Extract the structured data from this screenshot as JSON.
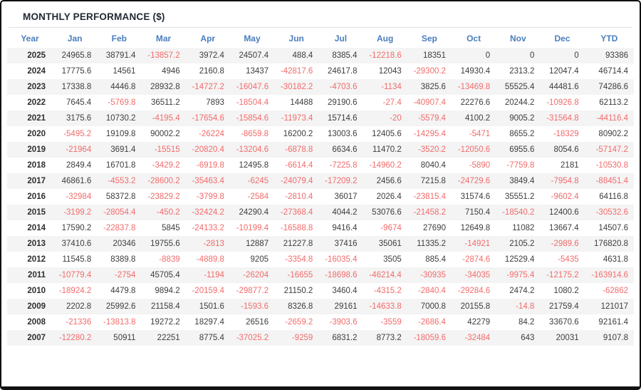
{
  "title": "MONTHLY PERFORMANCE ($)",
  "colors": {
    "header_blue": "#4a7ebd",
    "negative_red": "#f26b6b",
    "value_dark": "#3d3d3d",
    "stripe_gray": "#f4f4f4",
    "title_dark": "#222a35",
    "frame_border": "#111111"
  },
  "chart_data": {
    "type": "table",
    "title": "MONTHLY PERFORMANCE ($)",
    "columns": [
      "Year",
      "Jan",
      "Feb",
      "Mar",
      "Apr",
      "May",
      "Jun",
      "Jul",
      "Aug",
      "Sep",
      "Oct",
      "Nov",
      "Dec",
      "YTD"
    ],
    "rows": [
      [
        "2025",
        "24965.8",
        "38791.4",
        "-13857.2",
        "3972.4",
        "24507.4",
        "488.4",
        "8385.4",
        "-12218.6",
        "18351",
        "0",
        "0",
        "0",
        "93386"
      ],
      [
        "2024",
        "17775.6",
        "14561",
        "4946",
        "2160.8",
        "13437",
        "-42817.6",
        "24617.8",
        "12043",
        "-29300.2",
        "14930.4",
        "2313.2",
        "12047.4",
        "46714.4"
      ],
      [
        "2023",
        "17338.8",
        "4446.8",
        "28932.8",
        "-14727.2",
        "-16047.6",
        "-30182.2",
        "-4703.6",
        "-1134",
        "3825.6",
        "-13469.8",
        "55525.4",
        "44481.6",
        "74286.6"
      ],
      [
        "2022",
        "7645.4",
        "-5769.8",
        "36511.2",
        "7893",
        "-18504.4",
        "14488",
        "29190.6",
        "-27.4",
        "-40907.4",
        "22276.6",
        "20244.2",
        "-10926.8",
        "62113.2"
      ],
      [
        "2021",
        "3175.6",
        "10730.2",
        "-4195.4",
        "-17654.6",
        "-15854.6",
        "-11973.4",
        "15714.6",
        "-20",
        "-5579.4",
        "4100.2",
        "9005.2",
        "-31564.8",
        "-44116.4"
      ],
      [
        "2020",
        "-5495.2",
        "19109.8",
        "90002.2",
        "-26224",
        "-8659.8",
        "16200.2",
        "13003.6",
        "12405.6",
        "-14295.4",
        "-5471",
        "8655.2",
        "-18329",
        "80902.2"
      ],
      [
        "2019",
        "-21964",
        "3691.4",
        "-15515",
        "-20820.4",
        "-13204.6",
        "-6878.8",
        "6634.6",
        "11470.2",
        "-3520.2",
        "-12050.6",
        "6955.6",
        "8054.6",
        "-57147.2"
      ],
      [
        "2018",
        "2849.4",
        "16701.8",
        "-3429.2",
        "-6919.8",
        "12495.8",
        "-6614.4",
        "-7225.8",
        "-14960.2",
        "8040.4",
        "-5890",
        "-7759.8",
        "2181",
        "-10530.8"
      ],
      [
        "2017",
        "46861.6",
        "-4553.2",
        "-28600.2",
        "-35463.4",
        "-6245",
        "-24079.4",
        "-17209.2",
        "2456.6",
        "7215.8",
        "-24729.6",
        "3849.4",
        "-7954.8",
        "-88451.4"
      ],
      [
        "2016",
        "-32984",
        "58372.8",
        "-23829.2",
        "-3799.8",
        "-2584",
        "-2810.4",
        "36017",
        "2026.4",
        "-23815.4",
        "31574.6",
        "35551.2",
        "-9602.4",
        "64116.8"
      ],
      [
        "2015",
        "-3199.2",
        "-28054.4",
        "-450.2",
        "-32424.2",
        "24290.4",
        "-27368.4",
        "4044.2",
        "53076.6",
        "-21458.2",
        "7150.4",
        "-18540.2",
        "12400.6",
        "-30532.6"
      ],
      [
        "2014",
        "17590.2",
        "-22837.8",
        "5845",
        "-24133.2",
        "-10199.4",
        "-16588.8",
        "9416.4",
        "-9674",
        "27690",
        "12649.8",
        "11082",
        "13667.4",
        "14507.6"
      ],
      [
        "2013",
        "37410.6",
        "20346",
        "19755.6",
        "-2813",
        "12887",
        "21227.8",
        "37416",
        "35061",
        "11335.2",
        "-14921",
        "2105.2",
        "-2989.6",
        "176820.8"
      ],
      [
        "2012",
        "11545.8",
        "8389.8",
        "-8839",
        "-4889.8",
        "9205",
        "-3354.8",
        "-16035.4",
        "3505",
        "885.4",
        "-2874.6",
        "12529.4",
        "-5435",
        "4631.8"
      ],
      [
        "2011",
        "-10779.4",
        "-2754",
        "45705.4",
        "-1194",
        "-26204",
        "-16655",
        "-18698.6",
        "-46214.4",
        "-30935",
        "-34035",
        "-9975.4",
        "-12175.2",
        "-163914.6"
      ],
      [
        "2010",
        "-18924.2",
        "4479.8",
        "9894.2",
        "-20159.4",
        "-29877.2",
        "21150.2",
        "3460.4",
        "-4315.2",
        "-2840.4",
        "-29284.6",
        "2474.2",
        "1080.2",
        "-62862"
      ],
      [
        "2009",
        "2202.8",
        "25992.6",
        "21158.4",
        "1501.6",
        "-1593.6",
        "8326.8",
        "29161",
        "-14633.8",
        "7000.8",
        "20155.8",
        "-14.8",
        "21759.4",
        "121017"
      ],
      [
        "2008",
        "-21336",
        "-13813.8",
        "19272.2",
        "18297.4",
        "26516",
        "-2659.2",
        "-3903.6",
        "-3559",
        "-2686.4",
        "42279",
        "84.2",
        "33670.6",
        "92161.4"
      ],
      [
        "2007",
        "-12280.2",
        "50911",
        "22251",
        "8775.4",
        "-37025.2",
        "-9259",
        "6831.2",
        "8773.2",
        "-18059.6",
        "-32484",
        "643",
        "20031",
        "9107.8"
      ]
    ]
  }
}
